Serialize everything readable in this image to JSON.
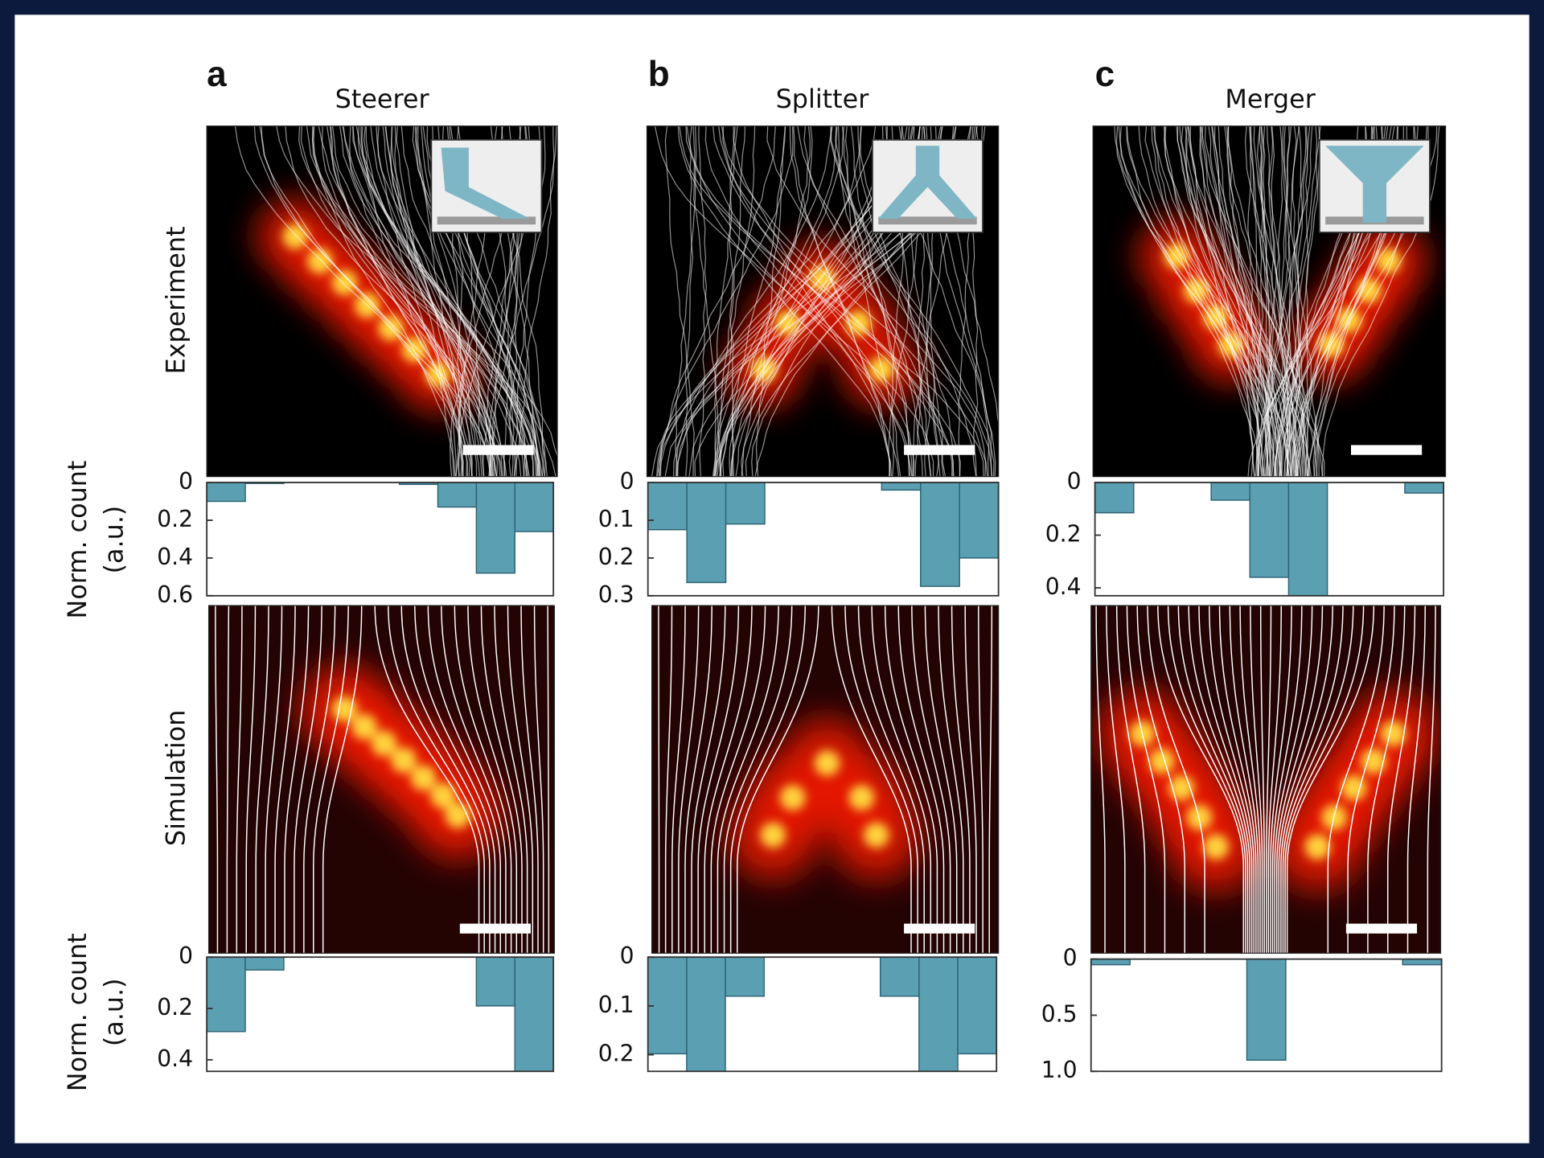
{
  "panels": [
    {
      "label": "a",
      "title": "Steerer"
    },
    {
      "label": "b",
      "title": "Splitter"
    },
    {
      "label": "c",
      "title": "Merger"
    }
  ],
  "row_labels": {
    "experiment": "Experiment",
    "simulation": "Simulation"
  },
  "chart_data": [
    {
      "type": "bar",
      "ylabel": [
        "Norm. count",
        "(a.u.)"
      ],
      "values": [
        0.1,
        0.005,
        0,
        0,
        0,
        0.01,
        0.13,
        0.48,
        0.26
      ],
      "color": "#5b9fb3",
      "ylim": [
        0,
        0.6
      ],
      "yticks": [
        0,
        0.2,
        0.4,
        0.6
      ]
    },
    {
      "type": "bar",
      "values": [
        0.125,
        0.265,
        0.11,
        0,
        0,
        0,
        0.02,
        0.275,
        0.2
      ],
      "color": "#5b9fb3",
      "ylim": [
        0,
        0.3
      ],
      "yticks": [
        0,
        0.1,
        0.2,
        0.3
      ]
    },
    {
      "type": "bar",
      "values": [
        0.115,
        0,
        0,
        0.067,
        0.36,
        0.43,
        0,
        0,
        0.04
      ],
      "color": "#5b9fb3",
      "ylim": [
        0,
        0.43
      ],
      "yticks": [
        0,
        0.2,
        0.4
      ]
    },
    {
      "type": "bar",
      "ylabel": [
        "Norm. count",
        "(a.u.)"
      ],
      "values": [
        0.29,
        0.05,
        0,
        0,
        0,
        0,
        0,
        0.19,
        0.445
      ],
      "color": "#5b9fb3",
      "ylim": [
        0,
        0.445
      ],
      "yticks": [
        0,
        0.2,
        0.4
      ]
    },
    {
      "type": "bar",
      "values": [
        0.198,
        0.234,
        0.08,
        0,
        0,
        0,
        0.08,
        0.234,
        0.198
      ],
      "color": "#5b9fb3",
      "ylim": [
        0,
        0.234
      ],
      "yticks": [
        0,
        0.1,
        0.2
      ]
    },
    {
      "type": "bar",
      "values": [
        0.05,
        0,
        0,
        0,
        0.9,
        0,
        0,
        0,
        0.05
      ],
      "color": "#5b9fb3",
      "ylim": [
        0,
        1
      ],
      "yticks": [
        0,
        0.5,
        {
          "value": 1,
          "label": "1.0"
        }
      ]
    }
  ]
}
